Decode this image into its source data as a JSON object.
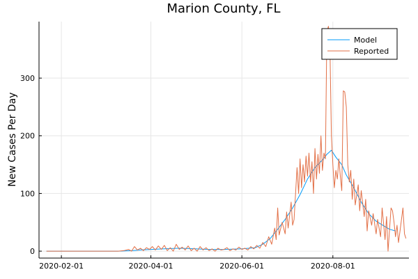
{
  "chart_data": {
    "type": "line",
    "title": "Marion County, FL",
    "xlabel": "",
    "ylabel": "New Cases Per Day",
    "x_type": "date",
    "xlim": [
      "2020-01-17",
      "2020-09-21"
    ],
    "ylim": [
      -12,
      398
    ],
    "x_ticks": [
      "2020-02-01",
      "2020-04-01",
      "2020-06-01",
      "2020-08-01"
    ],
    "y_ticks": [
      0,
      100,
      200,
      300
    ],
    "grid": true,
    "legend_position": "top-right",
    "series": [
      {
        "name": "Model",
        "color": "#009af9",
        "points": [
          [
            "2020-01-22",
            0
          ],
          [
            "2020-02-15",
            0
          ],
          [
            "2020-03-10",
            0
          ],
          [
            "2020-03-20",
            1
          ],
          [
            "2020-03-25",
            2
          ],
          [
            "2020-04-01",
            3
          ],
          [
            "2020-04-10",
            4
          ],
          [
            "2020-04-20",
            5
          ],
          [
            "2020-05-01",
            4
          ],
          [
            "2020-05-10",
            3
          ],
          [
            "2020-05-20",
            3
          ],
          [
            "2020-06-01",
            4
          ],
          [
            "2020-06-10",
            6
          ],
          [
            "2020-06-15",
            12
          ],
          [
            "2020-06-20",
            22
          ],
          [
            "2020-06-25",
            38
          ],
          [
            "2020-06-30",
            55
          ],
          [
            "2020-07-05",
            75
          ],
          [
            "2020-07-10",
            98
          ],
          [
            "2020-07-15",
            125
          ],
          [
            "2020-07-20",
            145
          ],
          [
            "2020-07-25",
            158
          ],
          [
            "2020-07-28",
            168
          ],
          [
            "2020-07-31",
            175
          ],
          [
            "2020-08-03",
            163
          ],
          [
            "2020-08-07",
            150
          ],
          [
            "2020-08-10",
            132
          ],
          [
            "2020-08-15",
            110
          ],
          [
            "2020-08-20",
            85
          ],
          [
            "2020-08-25",
            65
          ],
          [
            "2020-08-30",
            52
          ],
          [
            "2020-09-04",
            44
          ],
          [
            "2020-09-08",
            38
          ],
          [
            "2020-09-12",
            35
          ]
        ]
      },
      {
        "name": "Reported",
        "color": "#e26f46",
        "points": [
          [
            "2020-01-22",
            0
          ],
          [
            "2020-02-15",
            0
          ],
          [
            "2020-03-10",
            0
          ],
          [
            "2020-03-14",
            1
          ],
          [
            "2020-03-17",
            3
          ],
          [
            "2020-03-19",
            0
          ],
          [
            "2020-03-21",
            8
          ],
          [
            "2020-03-23",
            2
          ],
          [
            "2020-03-25",
            5
          ],
          [
            "2020-03-27",
            1
          ],
          [
            "2020-03-29",
            6
          ],
          [
            "2020-03-31",
            3
          ],
          [
            "2020-04-02",
            8
          ],
          [
            "2020-04-04",
            2
          ],
          [
            "2020-04-06",
            9
          ],
          [
            "2020-04-08",
            3
          ],
          [
            "2020-04-10",
            10
          ],
          [
            "2020-04-12",
            1
          ],
          [
            "2020-04-14",
            6
          ],
          [
            "2020-04-16",
            0
          ],
          [
            "2020-04-18",
            12
          ],
          [
            "2020-04-20",
            3
          ],
          [
            "2020-04-22",
            7
          ],
          [
            "2020-04-24",
            2
          ],
          [
            "2020-04-26",
            9
          ],
          [
            "2020-04-28",
            1
          ],
          [
            "2020-04-30",
            5
          ],
          [
            "2020-05-02",
            0
          ],
          [
            "2020-05-04",
            8
          ],
          [
            "2020-05-06",
            2
          ],
          [
            "2020-05-08",
            6
          ],
          [
            "2020-05-10",
            1
          ],
          [
            "2020-05-12",
            4
          ],
          [
            "2020-05-14",
            0
          ],
          [
            "2020-05-16",
            5
          ],
          [
            "2020-05-18",
            2
          ],
          [
            "2020-05-20",
            3
          ],
          [
            "2020-05-22",
            6
          ],
          [
            "2020-05-24",
            1
          ],
          [
            "2020-05-26",
            4
          ],
          [
            "2020-05-28",
            2
          ],
          [
            "2020-05-30",
            7
          ],
          [
            "2020-06-01",
            3
          ],
          [
            "2020-06-03",
            5
          ],
          [
            "2020-06-05",
            2
          ],
          [
            "2020-06-07",
            8
          ],
          [
            "2020-06-09",
            4
          ],
          [
            "2020-06-11",
            10
          ],
          [
            "2020-06-13",
            5
          ],
          [
            "2020-06-15",
            15
          ],
          [
            "2020-06-17",
            8
          ],
          [
            "2020-06-19",
            25
          ],
          [
            "2020-06-21",
            12
          ],
          [
            "2020-06-23",
            40
          ],
          [
            "2020-06-24",
            20
          ],
          [
            "2020-06-25",
            75
          ],
          [
            "2020-06-26",
            28
          ],
          [
            "2020-06-28",
            50
          ],
          [
            "2020-06-30",
            30
          ],
          [
            "2020-07-01",
            68
          ],
          [
            "2020-07-02",
            40
          ],
          [
            "2020-07-04",
            85
          ],
          [
            "2020-07-05",
            45
          ],
          [
            "2020-07-06",
            55
          ],
          [
            "2020-07-08",
            145
          ],
          [
            "2020-07-09",
            100
          ],
          [
            "2020-07-10",
            160
          ],
          [
            "2020-07-11",
            110
          ],
          [
            "2020-07-12",
            150
          ],
          [
            "2020-07-13",
            120
          ],
          [
            "2020-07-14",
            165
          ],
          [
            "2020-07-15",
            130
          ],
          [
            "2020-07-16",
            170
          ],
          [
            "2020-07-17",
            120
          ],
          [
            "2020-07-18",
            155
          ],
          [
            "2020-07-19",
            100
          ],
          [
            "2020-07-20",
            178
          ],
          [
            "2020-07-21",
            125
          ],
          [
            "2020-07-22",
            168
          ],
          [
            "2020-07-23",
            135
          ],
          [
            "2020-07-24",
            200
          ],
          [
            "2020-07-25",
            140
          ],
          [
            "2020-07-26",
            170
          ],
          [
            "2020-07-27",
            160
          ],
          [
            "2020-07-28",
            380
          ],
          [
            "2020-07-29",
            390
          ],
          [
            "2020-07-30",
            360
          ],
          [
            "2020-07-31",
            200
          ],
          [
            "2020-08-01",
            150
          ],
          [
            "2020-08-02",
            110
          ],
          [
            "2020-08-03",
            140
          ],
          [
            "2020-08-04",
            125
          ],
          [
            "2020-08-05",
            160
          ],
          [
            "2020-08-06",
            130
          ],
          [
            "2020-08-07",
            105
          ],
          [
            "2020-08-08",
            278
          ],
          [
            "2020-08-09",
            276
          ],
          [
            "2020-08-10",
            250
          ],
          [
            "2020-08-11",
            150
          ],
          [
            "2020-08-12",
            120
          ],
          [
            "2020-08-13",
            140
          ],
          [
            "2020-08-14",
            90
          ],
          [
            "2020-08-15",
            125
          ],
          [
            "2020-08-16",
            80
          ],
          [
            "2020-08-18",
            115
          ],
          [
            "2020-08-19",
            70
          ],
          [
            "2020-08-20",
            105
          ],
          [
            "2020-08-22",
            60
          ],
          [
            "2020-08-23",
            90
          ],
          [
            "2020-08-24",
            35
          ],
          [
            "2020-08-25",
            70
          ],
          [
            "2020-08-27",
            45
          ],
          [
            "2020-08-28",
            65
          ],
          [
            "2020-08-30",
            30
          ],
          [
            "2020-08-31",
            55
          ],
          [
            "2020-09-02",
            25
          ],
          [
            "2020-09-03",
            75
          ],
          [
            "2020-09-05",
            20
          ],
          [
            "2020-09-06",
            60
          ],
          [
            "2020-09-07",
            0
          ],
          [
            "2020-09-09",
            75
          ],
          [
            "2020-09-10",
            70
          ],
          [
            "2020-09-11",
            50
          ],
          [
            "2020-09-12",
            25
          ],
          [
            "2020-09-13",
            45
          ],
          [
            "2020-09-14",
            15
          ],
          [
            "2020-09-15",
            35
          ],
          [
            "2020-09-17",
            75
          ],
          [
            "2020-09-18",
            30
          ],
          [
            "2020-09-19",
            22
          ]
        ]
      }
    ]
  }
}
